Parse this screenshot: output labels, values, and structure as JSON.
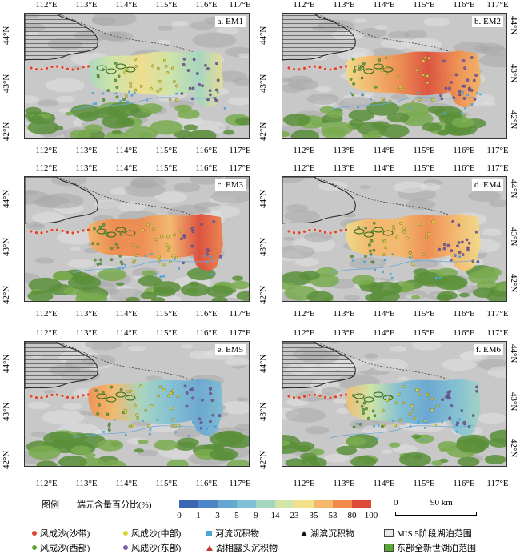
{
  "panels": [
    {
      "label": "a. EM1"
    },
    {
      "label": "b. EM2"
    },
    {
      "label": "c. EM3"
    },
    {
      "label": "d. EM4"
    },
    {
      "label": "e. EM5"
    },
    {
      "label": "f. EM6"
    }
  ],
  "lon_labels": [
    "112°E",
    "113°E",
    "114°E",
    "115°E",
    "116°E",
    "117°E"
  ],
  "lat_labels": [
    "44°N",
    "43°N",
    "42°N"
  ],
  "legend": {
    "title": "图例",
    "colorbar_title": "端元含量百分比(%)",
    "ticks": [
      "0",
      "1",
      "3",
      "5",
      "9",
      "14",
      "23",
      "35",
      "53",
      "80",
      "100"
    ],
    "colors": [
      "#3a66b5",
      "#4d86c8",
      "#66a6d3",
      "#7fc0d4",
      "#a5d6c0",
      "#cfe6a6",
      "#f2e08a",
      "#f6b868",
      "#f08a4a",
      "#de4a36"
    ],
    "scale_zero": "0",
    "scale_label": "90 km",
    "items": [
      {
        "label": "风成沙(沙带)",
        "symbol": "dot",
        "color": "#d9462b"
      },
      {
        "label": "风成沙(中部)",
        "symbol": "dot",
        "color": "#d8d23a"
      },
      {
        "label": "河流沉积物",
        "symbol": "square",
        "color": "#4fa3d9"
      },
      {
        "label": "湖滨沉积物",
        "symbol": "triangle",
        "color": "#111111"
      },
      {
        "label": "MIS 5阶段湖泊范围",
        "symbol": "box",
        "color": "#e8e8e8"
      },
      {
        "label": "风成沙(西部)",
        "symbol": "dot",
        "color": "#5fa63a"
      },
      {
        "label": "风成沙(东部)",
        "symbol": "dot",
        "color": "#7a5ea8"
      },
      {
        "label": "湖相露头沉积物",
        "symbol": "triangle",
        "color": "#c0392b"
      },
      {
        "label": "东部全新世湖泊范围",
        "symbol": "box",
        "color": "#5aa832"
      }
    ]
  },
  "fields": [
    [
      "#a5d6c0",
      "#cfe6a6",
      "#f2e08a",
      "#cfe6a6",
      "#a5d6c0",
      "#f2e08a"
    ],
    [
      "#f2e08a",
      "#f6b868",
      "#f08a4a",
      "#de4a36",
      "#f08a4a",
      "#f6b868"
    ],
    [
      "#f6b868",
      "#f08a4a",
      "#f08a4a",
      "#f6b868",
      "#de4a36",
      "#f08a4a"
    ],
    [
      "#f2e08a",
      "#f6b868",
      "#f6b868",
      "#f08a4a",
      "#f6b868",
      "#f2e08a"
    ],
    [
      "#f08a4a",
      "#f6b868",
      "#a5d6c0",
      "#7fc0d4",
      "#66a6d3",
      "#7fc0d4"
    ],
    [
      "#f6b868",
      "#cfe6a6",
      "#7fc0d4",
      "#66a6d3",
      "#7fc0d4",
      "#a5d6c0"
    ]
  ]
}
